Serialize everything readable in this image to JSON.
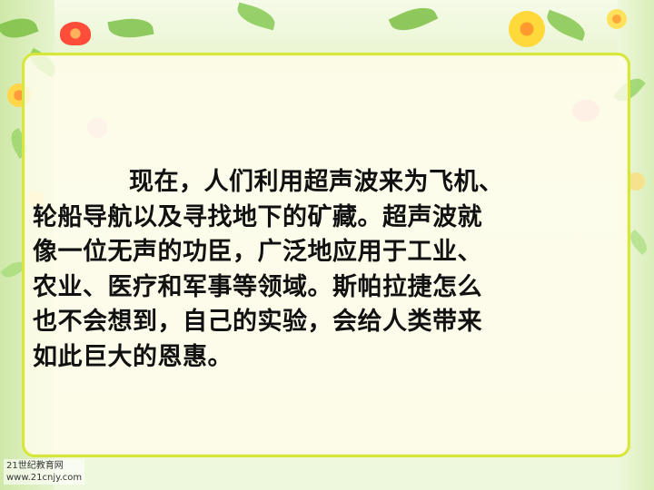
{
  "paragraph": {
    "lines": [
      "现在，人们利用超声波来为飞机、",
      "轮船导航以及寻找地下的矿藏。超声波就",
      "像一位无声的功臣，广泛地应用于工业、",
      "农业、医疗和军事等领域。斯帕拉捷怎么",
      "也不会想到，自己的实验，会给人类带来",
      "如此巨大的恩惠。"
    ]
  },
  "watermark": {
    "line1": "21世纪教育网",
    "line2": "www.21cnjy.com"
  },
  "colors": {
    "frame": "#d7e63a",
    "text": "#111111"
  }
}
